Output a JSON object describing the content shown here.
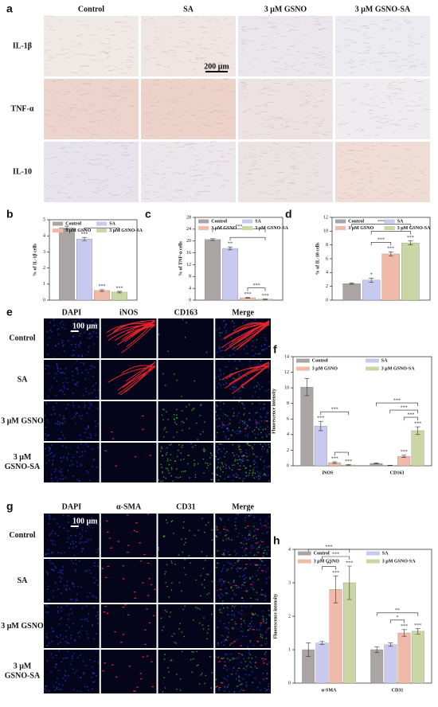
{
  "panels": [
    {
      "label": "a",
      "columns": [
        "Control",
        "SA",
        "3 μM GSNO",
        "3 μM GSNO-SA"
      ],
      "rows": [
        "IL-1β",
        "TNF-α",
        "IL-10"
      ],
      "scale_bar": "200 μm"
    },
    {
      "label": "e",
      "columns": [
        "DAPI",
        "iNOS",
        "CD163",
        "Merge"
      ],
      "rows": [
        "Control",
        "SA",
        "3 μM GSNO",
        "3 μM GSNO-SA"
      ],
      "scale_bar": "100 μm"
    },
    {
      "label": "g",
      "columns": [
        "DAPI",
        "α-SMA",
        "CD31",
        "Merge"
      ],
      "rows": [
        "Control",
        "SA",
        "3 μM GSNO",
        "3 μM GSNO-SA"
      ],
      "scale_bar": "100 μm"
    }
  ],
  "chart_data": [
    {
      "type": "bar",
      "panel_label": "b",
      "ylabel": "% of IL-1β cells",
      "categories": [
        null
      ],
      "ylim": [
        0,
        5
      ],
      "yticks": [
        0,
        1,
        2,
        3,
        4,
        5
      ],
      "series": [
        {
          "name": "Control",
          "color": "#aaa4a4",
          "values": [
            4.5
          ],
          "errors": [
            0.1
          ],
          "stars": [
            null
          ]
        },
        {
          "name": "SA",
          "color": "#c7c9ef",
          "values": [
            3.8
          ],
          "errors": [
            0.1
          ],
          "stars": [
            "***"
          ]
        },
        {
          "name": "3 μM GSNO",
          "color": "#f0baa9",
          "values": [
            0.6
          ],
          "errors": [
            0.05
          ],
          "stars": [
            "***"
          ]
        },
        {
          "name": "3 μM GSNO-SA",
          "color": "#cad7a4",
          "values": [
            0.5
          ],
          "errors": [
            0.05
          ],
          "stars": [
            "***"
          ]
        }
      ],
      "brackets": [
        {
          "from": "SA",
          "to": "3 μM GSNO-SA"
        }
      ]
    },
    {
      "type": "bar",
      "panel_label": "c",
      "ylabel": "% of TNF-α cells",
      "categories": [
        null
      ],
      "ylim": [
        0,
        28
      ],
      "yticks": [
        0,
        4,
        8,
        12,
        16,
        20,
        24,
        28
      ],
      "series": [
        {
          "name": "Control",
          "color": "#aaa4a4",
          "values": [
            20.5
          ],
          "errors": [
            0.3
          ],
          "stars": [
            null
          ]
        },
        {
          "name": "SA",
          "color": "#c7c9ef",
          "values": [
            17.5
          ],
          "errors": [
            0.5
          ],
          "stars": [
            "**"
          ]
        },
        {
          "name": "3 μM GSNO",
          "color": "#f0baa9",
          "values": [
            0.8
          ],
          "errors": [
            0.1
          ],
          "stars": [
            "***"
          ]
        },
        {
          "name": "3 μM GSNO-SA",
          "color": "#cad7a4",
          "values": [
            0.3
          ],
          "errors": [
            0.1
          ],
          "stars": [
            "***"
          ]
        }
      ],
      "brackets": [
        {
          "from": "3 μM GSNO",
          "to": "3 μM GSNO-SA",
          "label": "***"
        },
        {
          "from": "SA",
          "to": "3 μM GSNO-SA"
        },
        {
          "from": "Control",
          "to": "3 μM GSNO-SA",
          "label": "***"
        }
      ]
    },
    {
      "type": "bar",
      "panel_label": "d",
      "ylabel": "% of IL-10 cells",
      "categories": [
        null
      ],
      "ylim": [
        0,
        12
      ],
      "yticks": [
        0,
        2,
        4,
        6,
        8,
        10,
        12
      ],
      "series": [
        {
          "name": "Control",
          "color": "#aaa4a4",
          "values": [
            2.4
          ],
          "errors": [
            0.1
          ],
          "stars": [
            null
          ]
        },
        {
          "name": "SA",
          "color": "#c7c9ef",
          "values": [
            2.9
          ],
          "errors": [
            0.3
          ],
          "stars": [
            "*"
          ]
        },
        {
          "name": "3 μM GSNO",
          "color": "#f0baa9",
          "values": [
            6.7
          ],
          "errors": [
            0.3
          ],
          "stars": [
            "***"
          ]
        },
        {
          "name": "3 μM GSNO-SA",
          "color": "#cad7a4",
          "values": [
            8.3
          ],
          "errors": [
            0.3
          ],
          "stars": [
            "***"
          ]
        }
      ],
      "brackets": [
        {
          "from": "SA",
          "to": "3 μM GSNO",
          "label": "***"
        },
        {
          "from": "SA",
          "to": "3 μM GSNO-SA",
          "label": "***"
        },
        {
          "from": "Control",
          "to": "3 μM GSNO-SA",
          "label": "***"
        }
      ]
    },
    {
      "type": "bar",
      "panel_label": "f",
      "ylabel": "Fluorescence intensity",
      "categories": [
        "iNOS",
        "CD163"
      ],
      "ylim": [
        0,
        14
      ],
      "yticks": [
        0,
        2,
        4,
        6,
        8,
        10,
        12,
        14
      ],
      "series": [
        {
          "name": "Control",
          "color": "#aaa4a4",
          "values": [
            10.1,
            0.3
          ],
          "errors": [
            1.1,
            0.05
          ],
          "stars": [
            null,
            null
          ]
        },
        {
          "name": "SA",
          "color": "#c7c9ef",
          "values": [
            5.1,
            0.05
          ],
          "errors": [
            0.6,
            0.02
          ],
          "stars": [
            "***",
            null
          ]
        },
        {
          "name": "3 μM GSNO",
          "color": "#f0baa9",
          "values": [
            0.4,
            1.2
          ],
          "errors": [
            0.1,
            0.15
          ],
          "stars": [
            "***",
            "***"
          ]
        },
        {
          "name": "3 μM GSNO-SA",
          "color": "#cad7a4",
          "values": [
            0.1,
            4.5
          ],
          "errors": [
            0.05,
            0.5
          ],
          "stars": [
            "***",
            "***"
          ]
        }
      ],
      "brackets": [
        {
          "category": "iNOS",
          "from": "3 μM GSNO",
          "to": "3 μM GSNO-SA"
        },
        {
          "category": "iNOS",
          "from": "SA",
          "to": "3 μM GSNO-SA",
          "label": "***"
        },
        {
          "category": "CD163",
          "from": "3 μM GSNO",
          "to": "3 μM GSNO-SA",
          "label": "***"
        },
        {
          "category": "CD163",
          "from": "SA",
          "to": "3 μM GSNO-SA",
          "label": "***"
        },
        {
          "category": "CD163",
          "from": "Control",
          "to": "3 μM GSNO-SA",
          "label": "***"
        }
      ]
    },
    {
      "type": "bar",
      "panel_label": "h",
      "ylabel": "Fluorescence intensity",
      "categories": [
        "α-SMA",
        "CD31"
      ],
      "ylim": [
        0,
        4
      ],
      "yticks": [
        0,
        1,
        2,
        3,
        4
      ],
      "series": [
        {
          "name": "Control",
          "color": "#aaa4a4",
          "values": [
            1.0,
            1.0
          ],
          "errors": [
            0.2,
            0.08
          ],
          "stars": [
            null,
            null
          ]
        },
        {
          "name": "SA",
          "color": "#c7c9ef",
          "values": [
            1.2,
            1.15
          ],
          "errors": [
            0.05,
            0.05
          ],
          "stars": [
            null,
            null
          ]
        },
        {
          "name": "3 μM GSNO",
          "color": "#f0baa9",
          "values": [
            2.8,
            1.5
          ],
          "errors": [
            0.4,
            0.1
          ],
          "stars": [
            "***",
            "***"
          ]
        },
        {
          "name": "3 μM GSNO-SA",
          "color": "#cad7a4",
          "values": [
            3.0,
            1.55
          ],
          "errors": [
            0.5,
            0.08
          ],
          "stars": [
            "***",
            "***"
          ]
        }
      ],
      "brackets": [
        {
          "category": "α-SMA",
          "from": "SA",
          "to": "3 μM GSNO",
          "label": "**"
        },
        {
          "category": "α-SMA",
          "from": "SA",
          "to": "3 μM GSNO-SA",
          "label": "***"
        },
        {
          "category": "α-SMA",
          "from": "Control",
          "to": "3 μM GSNO-SA",
          "label": "***"
        },
        {
          "category": "CD31",
          "from": "SA",
          "to": "3 μM GSNO",
          "label": "*"
        },
        {
          "category": "CD31",
          "from": "Control",
          "to": "3 μM GSNO-SA",
          "label": "**"
        }
      ]
    }
  ]
}
